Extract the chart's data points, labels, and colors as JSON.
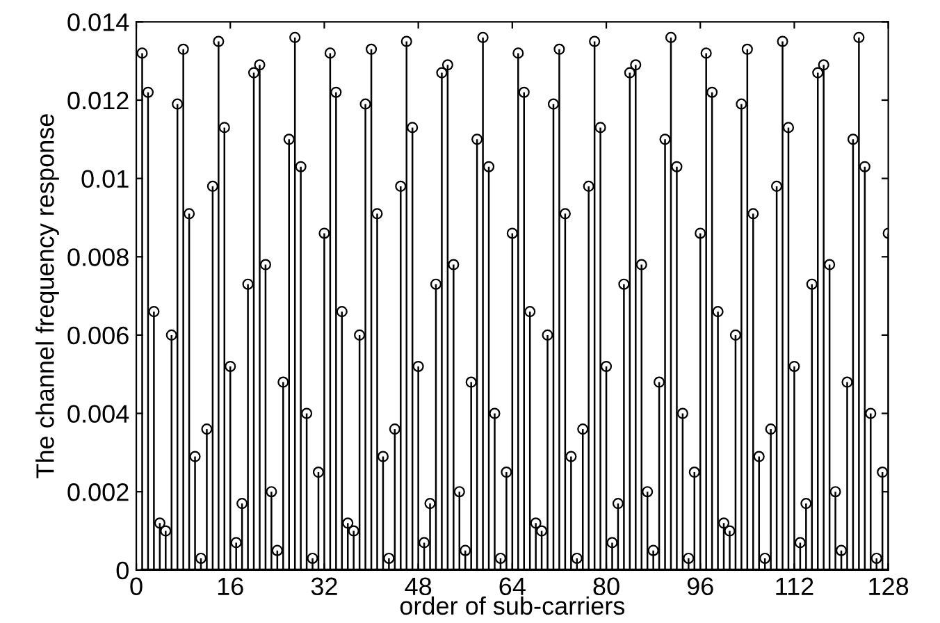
{
  "chart_data": {
    "type": "lollipop",
    "xlabel": "order of sub-carriers",
    "ylabel": "The channel frequency response",
    "x": [
      1,
      2,
      3,
      4,
      5,
      6,
      7,
      8,
      9,
      10,
      11,
      12,
      13,
      14,
      15,
      16,
      17,
      18,
      19,
      20,
      21,
      22,
      23,
      24,
      25,
      26,
      27,
      28,
      29,
      30,
      31,
      32,
      33,
      34,
      35,
      36,
      37,
      38,
      39,
      40,
      41,
      42,
      43,
      44,
      45,
      46,
      47,
      48,
      49,
      50,
      51,
      52,
      53,
      54,
      55,
      56,
      57,
      58,
      59,
      60,
      61,
      62,
      63,
      64,
      65,
      66,
      67,
      68,
      69,
      70,
      71,
      72,
      73,
      74,
      75,
      76,
      77,
      78,
      79,
      80,
      81,
      82,
      83,
      84,
      85,
      86,
      87,
      88,
      89,
      90,
      91,
      92,
      93,
      94,
      95,
      96,
      97,
      98,
      99,
      100,
      101,
      102,
      103,
      104,
      105,
      106,
      107,
      108,
      109,
      110,
      111,
      112,
      113,
      114,
      115,
      116,
      117,
      118,
      119,
      120,
      121,
      122,
      123,
      124,
      125,
      126,
      127,
      128
    ],
    "series": [
      {
        "color": "#000000",
        "values": [
          0.0132,
          0.0122,
          0.0066,
          0.0012,
          0.001,
          0.006,
          0.0119,
          0.0133,
          0.0091,
          0.0029,
          0.0003,
          0.0036,
          0.0098,
          0.0135,
          0.0113,
          0.0052,
          0.0007,
          0.0017,
          0.0073,
          0.0127,
          0.0129,
          0.0078,
          0.002,
          0.0005,
          0.0048,
          0.011,
          0.0136,
          0.0103,
          0.004,
          0.0003,
          0.0025,
          0.0086,
          0.0132,
          0.0122,
          0.0066,
          0.0012,
          0.001,
          0.006,
          0.0119,
          0.0133,
          0.0091,
          0.0029,
          0.0003,
          0.0036,
          0.0098,
          0.0135,
          0.0113,
          0.0052,
          0.0007,
          0.0017,
          0.0073,
          0.0127,
          0.0129,
          0.0078,
          0.002,
          0.0005,
          0.0048,
          0.011,
          0.0136,
          0.0103,
          0.004,
          0.0003,
          0.0025,
          0.0086,
          0.0132,
          0.0122,
          0.0066,
          0.0012,
          0.001,
          0.006,
          0.0119,
          0.0133,
          0.0091,
          0.0029,
          0.0003,
          0.0036,
          0.0098,
          0.0135,
          0.0113,
          0.0052,
          0.0007,
          0.0017,
          0.0073,
          0.0127,
          0.0129,
          0.0078,
          0.002,
          0.0005,
          0.0048,
          0.011,
          0.0136,
          0.0103,
          0.004,
          0.0003,
          0.0025,
          0.0086,
          0.0132,
          0.0122,
          0.0066,
          0.0012,
          0.001,
          0.006,
          0.0119,
          0.0133,
          0.0091,
          0.0029,
          0.0003,
          0.0036,
          0.0098,
          0.0135,
          0.0113,
          0.0052,
          0.0007,
          0.0017,
          0.0073,
          0.0127,
          0.0129,
          0.0078,
          0.002,
          0.0005,
          0.0048,
          0.011,
          0.0136,
          0.0103,
          0.004,
          0.0003,
          0.0025,
          0.0086
        ]
      }
    ],
    "xlim": [
      0,
      128
    ],
    "xticks": [
      0,
      16,
      32,
      48,
      64,
      80,
      96,
      112,
      128
    ],
    "ylim": [
      0,
      0.014
    ],
    "yticks": [
      0,
      0.002,
      0.004,
      0.006,
      0.008,
      0.01,
      0.012,
      0.014
    ],
    "marker": "circle",
    "grid": false,
    "legend": false
  }
}
